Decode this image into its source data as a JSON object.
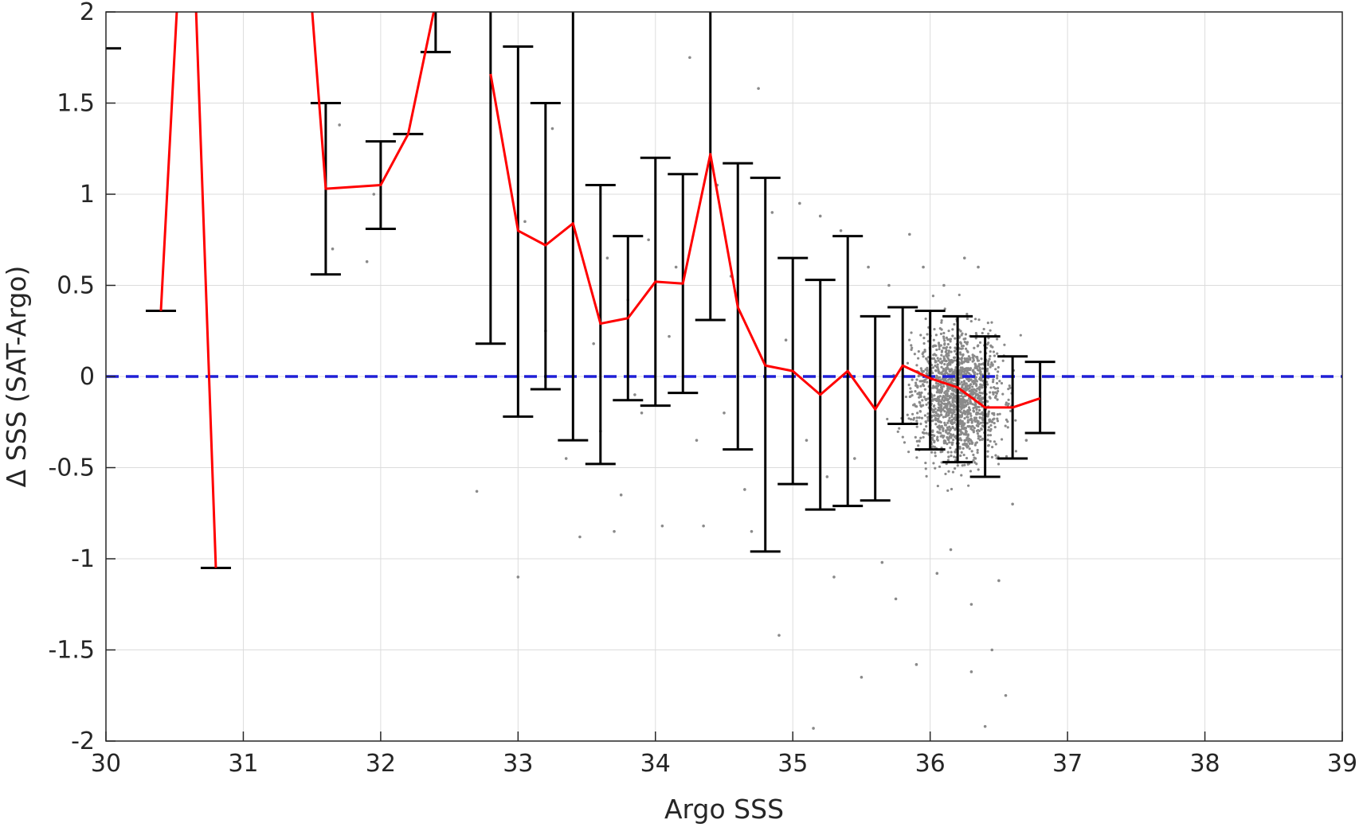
{
  "chart_data": {
    "type": "line",
    "xlabel": "Argo SSS",
    "ylabel": "Δ SSS (SAT-Argo)",
    "xlim": [
      30,
      39
    ],
    "ylim": [
      -2,
      2
    ],
    "xticks": [
      30,
      31,
      32,
      33,
      34,
      35,
      36,
      37,
      38,
      39
    ],
    "xtick_labels": [
      "30",
      "31",
      "32",
      "33",
      "34",
      "35",
      "36",
      "37",
      "38",
      "39"
    ],
    "yticks": [
      -2,
      -1.5,
      -1,
      -0.5,
      0,
      0.5,
      1,
      1.5,
      2
    ],
    "ytick_labels": [
      "-2",
      "-1.5",
      "-1",
      "-0.5",
      "0",
      "0.5",
      "1",
      "1.5",
      "2"
    ],
    "grid": true,
    "zero_line": {
      "y": 0,
      "color": "#1f1fd6",
      "style": "dashed"
    },
    "mean_line": {
      "color": "#ff0000",
      "segments": [
        [
          {
            "x": 30.4,
            "y": 0.36
          },
          {
            "x": 30.6,
            "y": 3.2
          },
          {
            "x": 30.8,
            "y": -1.05
          }
        ],
        [
          {
            "x": 31.4,
            "y": 3.0
          },
          {
            "x": 31.6,
            "y": 1.03
          },
          {
            "x": 32.0,
            "y": 1.05
          },
          {
            "x": 32.2,
            "y": 1.33
          },
          {
            "x": 32.4,
            "y": 2.05
          }
        ],
        [
          {
            "x": 32.8,
            "y": 1.66
          },
          {
            "x": 33.0,
            "y": 0.8
          },
          {
            "x": 33.2,
            "y": 0.72
          },
          {
            "x": 33.4,
            "y": 0.84
          },
          {
            "x": 33.6,
            "y": 0.29
          },
          {
            "x": 33.8,
            "y": 0.32
          },
          {
            "x": 34.0,
            "y": 0.52
          },
          {
            "x": 34.2,
            "y": 0.51
          },
          {
            "x": 34.4,
            "y": 1.22
          },
          {
            "x": 34.6,
            "y": 0.38
          },
          {
            "x": 34.8,
            "y": 0.06
          },
          {
            "x": 35.0,
            "y": 0.03
          },
          {
            "x": 35.2,
            "y": -0.1
          },
          {
            "x": 35.4,
            "y": 0.03
          },
          {
            "x": 35.6,
            "y": -0.18
          },
          {
            "x": 35.8,
            "y": 0.06
          },
          {
            "x": 36.0,
            "y": -0.01
          },
          {
            "x": 36.2,
            "y": -0.06
          },
          {
            "x": 36.4,
            "y": -0.17
          },
          {
            "x": 36.6,
            "y": -0.17
          },
          {
            "x": 36.8,
            "y": -0.12
          }
        ]
      ]
    },
    "error_bars": {
      "color": "#000000",
      "items": [
        {
          "x": 30.0,
          "low": 1.8,
          "high": 1.8
        },
        {
          "x": 30.4,
          "low": 0.36,
          "high": 0.36
        },
        {
          "x": 30.8,
          "low": -1.05,
          "high": -1.05
        },
        {
          "x": 31.6,
          "low": 0.56,
          "high": 1.5
        },
        {
          "x": 32.0,
          "low": 0.81,
          "high": 1.29
        },
        {
          "x": 32.2,
          "low": 1.33,
          "high": 1.33
        },
        {
          "x": 32.4,
          "low": 1.78,
          "high": 2.2
        },
        {
          "x": 32.8,
          "low": 0.18,
          "high": 2.5
        },
        {
          "x": 33.0,
          "low": -0.22,
          "high": 1.81
        },
        {
          "x": 33.2,
          "low": -0.07,
          "high": 1.5
        },
        {
          "x": 33.4,
          "low": -0.35,
          "high": 2.5
        },
        {
          "x": 33.6,
          "low": -0.48,
          "high": 1.05
        },
        {
          "x": 33.8,
          "low": -0.13,
          "high": 0.77
        },
        {
          "x": 34.0,
          "low": -0.16,
          "high": 1.2
        },
        {
          "x": 34.2,
          "low": -0.09,
          "high": 1.11
        },
        {
          "x": 34.4,
          "low": 0.31,
          "high": 2.5
        },
        {
          "x": 34.6,
          "low": -0.4,
          "high": 1.17
        },
        {
          "x": 34.8,
          "low": -0.96,
          "high": 1.09
        },
        {
          "x": 35.0,
          "low": -0.59,
          "high": 0.65
        },
        {
          "x": 35.2,
          "low": -0.73,
          "high": 0.53
        },
        {
          "x": 35.4,
          "low": -0.71,
          "high": 0.77
        },
        {
          "x": 35.6,
          "low": -0.68,
          "high": 0.33
        },
        {
          "x": 35.8,
          "low": -0.26,
          "high": 0.38
        },
        {
          "x": 36.0,
          "low": -0.4,
          "high": 0.36
        },
        {
          "x": 36.2,
          "low": -0.47,
          "high": 0.33
        },
        {
          "x": 36.4,
          "low": -0.55,
          "high": 0.22
        },
        {
          "x": 36.6,
          "low": -0.45,
          "high": 0.11
        },
        {
          "x": 36.8,
          "low": -0.31,
          "high": 0.08
        }
      ]
    },
    "scatter": {
      "color": "#8a8a8a",
      "points": [
        [
          31.7,
          1.38
        ],
        [
          31.65,
          0.7
        ],
        [
          31.9,
          0.63
        ],
        [
          31.95,
          1.0
        ],
        [
          32.7,
          -0.63
        ],
        [
          33.0,
          -1.1
        ],
        [
          33.05,
          0.85
        ],
        [
          33.2,
          0.25
        ],
        [
          33.25,
          1.36
        ],
        [
          33.35,
          -0.45
        ],
        [
          33.45,
          -0.88
        ],
        [
          33.55,
          0.18
        ],
        [
          33.6,
          -0.3
        ],
        [
          33.65,
          0.65
        ],
        [
          33.7,
          -0.85
        ],
        [
          33.75,
          -0.65
        ],
        [
          33.8,
          0.42
        ],
        [
          33.85,
          -0.1
        ],
        [
          33.9,
          -0.2
        ],
        [
          33.95,
          0.75
        ],
        [
          34.05,
          -0.82
        ],
        [
          34.1,
          0.22
        ],
        [
          34.15,
          0.6
        ],
        [
          34.25,
          1.75
        ],
        [
          34.3,
          -0.35
        ],
        [
          34.35,
          -0.82
        ],
        [
          34.45,
          1.05
        ],
        [
          34.5,
          -0.2
        ],
        [
          34.55,
          0.55
        ],
        [
          34.65,
          -0.62
        ],
        [
          34.7,
          -0.85
        ],
        [
          34.75,
          1.58
        ],
        [
          34.85,
          0.9
        ],
        [
          34.9,
          -1.42
        ],
        [
          34.95,
          0.2
        ],
        [
          35.05,
          0.95
        ],
        [
          35.1,
          -0.35
        ],
        [
          35.15,
          -1.93
        ],
        [
          35.2,
          0.88
        ],
        [
          35.25,
          -0.55
        ],
        [
          35.3,
          -1.1
        ],
        [
          35.35,
          0.8
        ],
        [
          35.45,
          -0.45
        ],
        [
          35.5,
          -1.65
        ],
        [
          35.55,
          0.6
        ],
        [
          35.65,
          -1.02
        ],
        [
          35.7,
          0.5
        ],
        [
          35.75,
          -1.22
        ],
        [
          35.85,
          0.78
        ],
        [
          35.9,
          -1.58
        ],
        [
          35.95,
          0.6
        ],
        [
          36.05,
          -1.08
        ],
        [
          36.1,
          0.5
        ],
        [
          36.15,
          -0.95
        ],
        [
          36.25,
          0.65
        ],
        [
          36.3,
          -1.25
        ],
        [
          36.35,
          0.6
        ],
        [
          36.45,
          -1.5
        ],
        [
          36.5,
          -1.12
        ],
        [
          36.55,
          -1.75
        ],
        [
          36.6,
          -0.7
        ],
        [
          36.7,
          -0.35
        ],
        [
          36.3,
          -1.62
        ],
        [
          36.4,
          -1.92
        ]
      ]
    }
  }
}
